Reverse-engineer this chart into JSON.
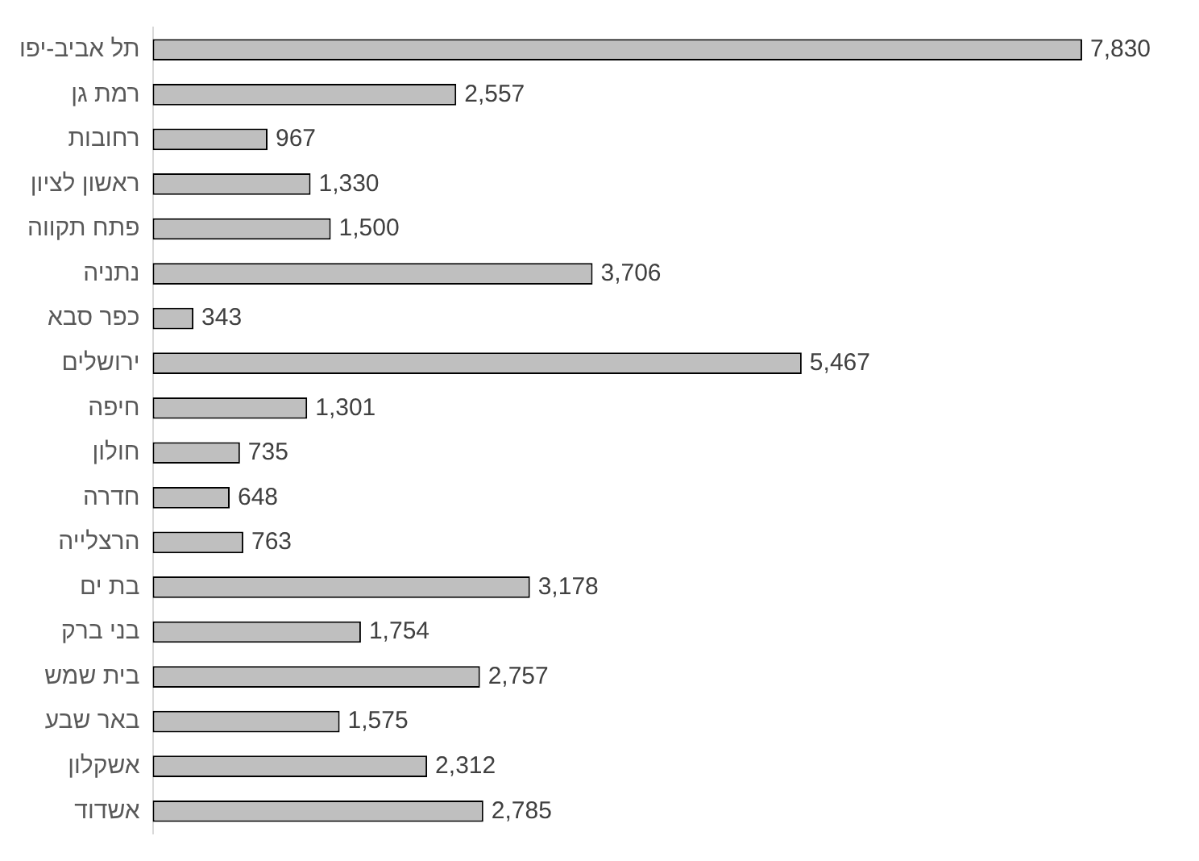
{
  "chart_data": {
    "type": "bar",
    "orientation": "horizontal",
    "legend": false,
    "categories": [
      "תל אביב-יפו",
      "רמת גן",
      "רחובות",
      "ראשון לציון",
      "פתח תקווה",
      "נתניה",
      "כפר סבא",
      "ירושלים",
      "חיפה",
      "חולון",
      "חדרה",
      "הרצלייה",
      "בת ים",
      "בני ברק",
      "בית שמש",
      "באר שבע",
      "אשקלון",
      "אשדוד"
    ],
    "values": [
      7830,
      2557,
      967,
      1330,
      1500,
      3706,
      343,
      5467,
      1301,
      735,
      648,
      763,
      3178,
      1754,
      2757,
      1575,
      2312,
      2785
    ],
    "value_labels": [
      "7,830",
      "2,557",
      "967",
      "1,330",
      "1,500",
      "3,706",
      "343",
      "5,467",
      "1,301",
      "735",
      "648",
      "763",
      "3,178",
      "1,754",
      "2,757",
      "1,575",
      "2,312",
      "2,785"
    ],
    "color": "#bfbfbf"
  }
}
